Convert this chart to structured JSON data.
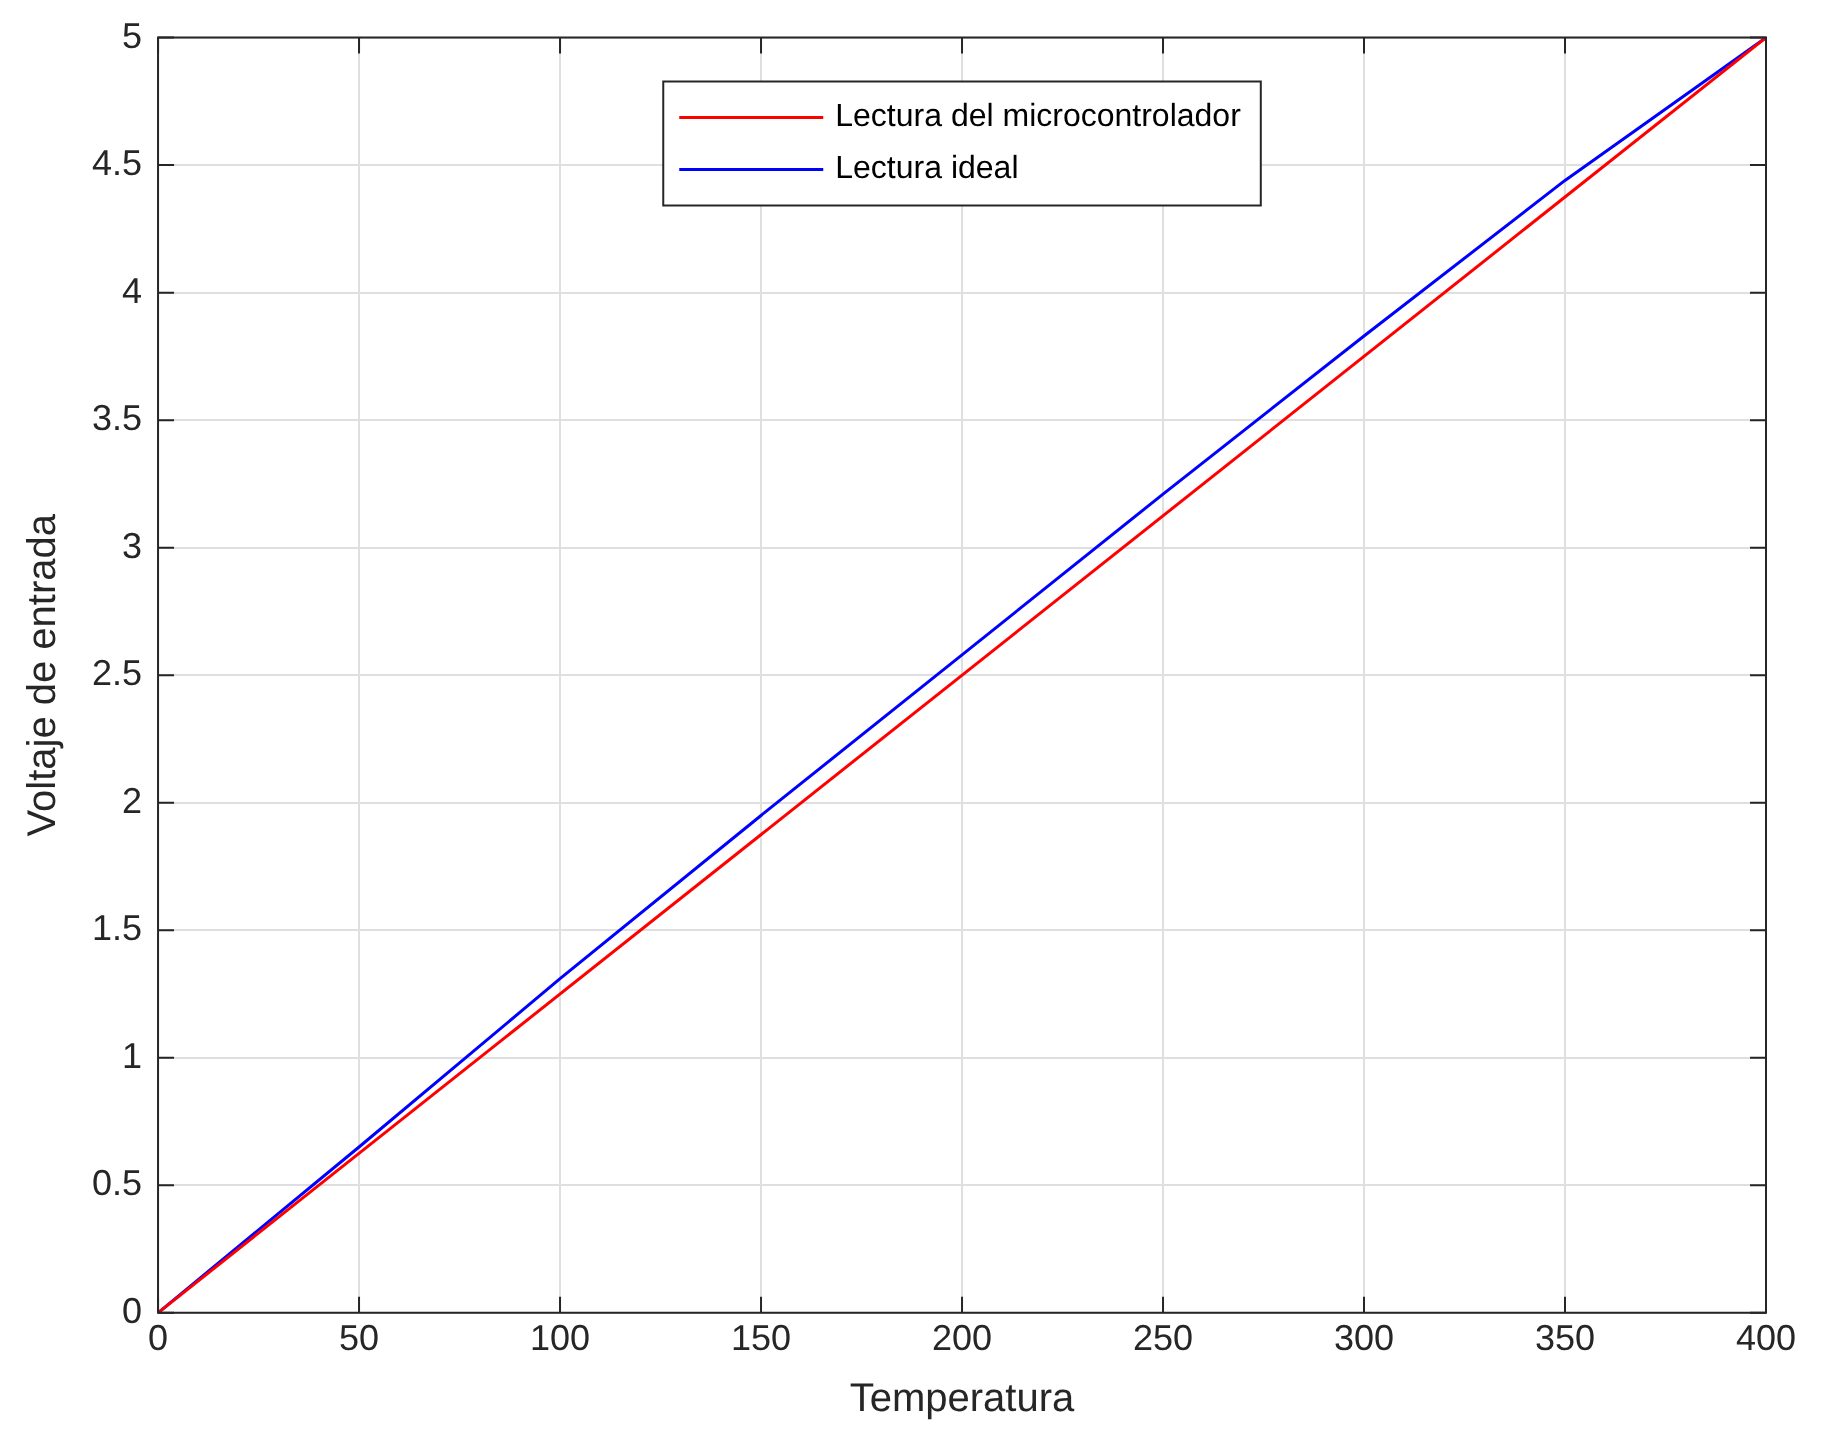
{
  "chart_data": {
    "type": "line",
    "xlabel": "Temperatura",
    "ylabel": "Voltaje de entrada",
    "xlim": [
      0,
      400
    ],
    "xticks": [
      0,
      50,
      100,
      150,
      200,
      250,
      300,
      350,
      400
    ],
    "ylim": [
      0,
      5
    ],
    "yticks": [
      0,
      0.5,
      1,
      1.5,
      2,
      2.5,
      3,
      3.5,
      4,
      4.5,
      5
    ],
    "grid": true,
    "legend": "top",
    "marker": "none",
    "line_style": "solid",
    "series": [
      {
        "name": "Lectura del microcontrolador",
        "color": "#ff0000",
        "x": [
          0,
          400
        ],
        "values": [
          0,
          5
        ]
      },
      {
        "name": "Lectura ideal",
        "color": "#0000ff",
        "x": [
          0,
          50,
          100,
          150,
          200,
          250,
          300,
          350,
          400
        ],
        "values": [
          0,
          0.65,
          1.31,
          1.95,
          2.58,
          3.21,
          3.83,
          4.44,
          5
        ]
      }
    ]
  }
}
